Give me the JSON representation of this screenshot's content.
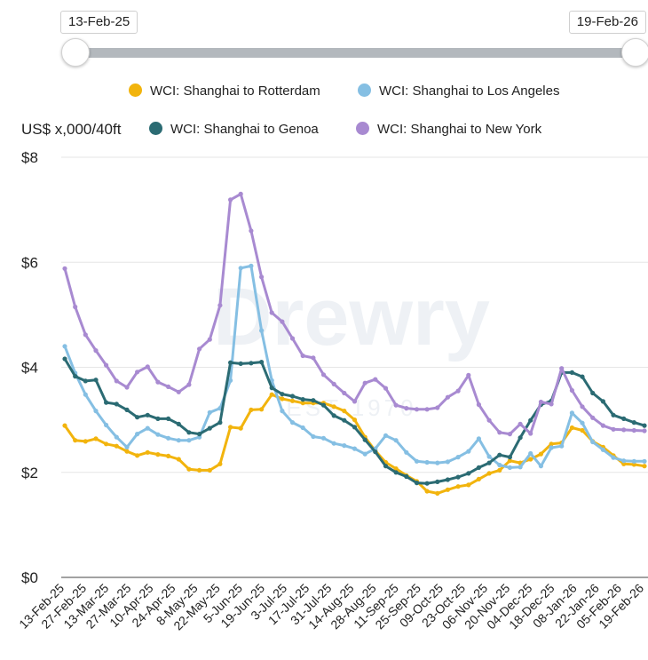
{
  "slider": {
    "start_label": "13-Feb-25",
    "end_label": "19-Feb-26"
  },
  "y_unit_label": "US$ x,000/40ft",
  "watermark": "Drewry EST 1970",
  "chart_data": {
    "type": "line",
    "ylabel": "US$ x,000/40ft",
    "ylim": [
      0,
      8
    ],
    "y_ticks": [
      0,
      2,
      4,
      6,
      8
    ],
    "y_tick_labels": [
      "$0",
      "$2",
      "$4",
      "$6",
      "$8"
    ],
    "grid": true,
    "legend_position": "top",
    "x_tick_labels": [
      "13-Feb-25",
      "27-Feb-25",
      "13-Mar-25",
      "27-Mar-25",
      "10-Apr-25",
      "24-Apr-25",
      "8-May-25",
      "22-May-25",
      "5-Jun-25",
      "19-Jun-25",
      "3-Jul-25",
      "17-Jul-25",
      "31-Jul-25",
      "14-Aug-25",
      "28-Aug-25",
      "11-Sep-25",
      "25-Sep-25",
      "09-Oct-25",
      "23-Oct-25",
      "06-Nov-25",
      "20-Nov-25",
      "04-Dec-25",
      "18-Dec-25",
      "08-Jan-26",
      "22-Jan-26",
      "05-Feb-26",
      "19-Feb-26"
    ],
    "series": [
      {
        "name": "WCI: Shanghai to Rotterdam",
        "color": "#f2b40d",
        "values": [
          2.89,
          2.61,
          2.59,
          2.64,
          2.54,
          2.5,
          2.4,
          2.32,
          2.38,
          2.34,
          2.31,
          2.25,
          2.06,
          2.04,
          2.04,
          2.16,
          2.86,
          2.84,
          3.19,
          3.2,
          3.48,
          3.4,
          3.36,
          3.32,
          3.32,
          3.32,
          3.25,
          3.17,
          3.0,
          2.67,
          2.41,
          2.19,
          2.07,
          1.94,
          1.83,
          1.64,
          1.6,
          1.67,
          1.73,
          1.76,
          1.87,
          1.98,
          2.04,
          2.22,
          2.18,
          2.25,
          2.35,
          2.54,
          2.56,
          2.85,
          2.8,
          2.59,
          2.48,
          2.32,
          2.16,
          2.15,
          2.12
        ]
      },
      {
        "name": "WCI: Shanghai to Los Angeles",
        "color": "#85bfe3",
        "values": [
          4.4,
          3.89,
          3.48,
          3.17,
          2.9,
          2.67,
          2.48,
          2.73,
          2.84,
          2.72,
          2.65,
          2.61,
          2.61,
          2.67,
          3.14,
          3.22,
          3.75,
          5.89,
          5.93,
          4.7,
          3.75,
          3.17,
          2.95,
          2.85,
          2.68,
          2.65,
          2.55,
          2.51,
          2.45,
          2.35,
          2.45,
          2.7,
          2.61,
          2.38,
          2.21,
          2.19,
          2.18,
          2.2,
          2.29,
          2.4,
          2.64,
          2.3,
          2.14,
          2.09,
          2.1,
          2.36,
          2.12,
          2.47,
          2.5,
          3.13,
          2.94,
          2.58,
          2.43,
          2.28,
          2.22,
          2.21,
          2.21
        ]
      },
      {
        "name": "WCI: Shanghai to Genoa",
        "color": "#2b6b73",
        "values": [
          4.16,
          3.83,
          3.74,
          3.76,
          3.33,
          3.3,
          3.19,
          3.05,
          3.09,
          3.02,
          3.02,
          2.92,
          2.76,
          2.73,
          2.84,
          2.95,
          4.09,
          4.07,
          4.08,
          4.1,
          3.61,
          3.49,
          3.45,
          3.39,
          3.37,
          3.28,
          3.08,
          2.99,
          2.86,
          2.62,
          2.39,
          2.12,
          2.0,
          1.92,
          1.8,
          1.79,
          1.82,
          1.86,
          1.91,
          1.98,
          2.09,
          2.18,
          2.33,
          2.29,
          2.66,
          2.99,
          3.29,
          3.36,
          3.9,
          3.9,
          3.82,
          3.51,
          3.35,
          3.09,
          3.02,
          2.95,
          2.89
        ]
      },
      {
        "name": "WCI: Shanghai to New York",
        "color": "#a88ad1",
        "values": [
          5.88,
          5.15,
          4.62,
          4.32,
          4.04,
          3.74,
          3.62,
          3.91,
          4.01,
          3.72,
          3.63,
          3.53,
          3.67,
          4.35,
          4.53,
          5.18,
          7.19,
          7.3,
          6.6,
          5.72,
          5.04,
          4.87,
          4.55,
          4.22,
          4.18,
          3.86,
          3.68,
          3.51,
          3.35,
          3.7,
          3.77,
          3.6,
          3.28,
          3.22,
          3.2,
          3.2,
          3.23,
          3.43,
          3.55,
          3.85,
          3.29,
          2.99,
          2.76,
          2.73,
          2.92,
          2.74,
          3.34,
          3.3,
          3.98,
          3.56,
          3.25,
          3.04,
          2.89,
          2.82,
          2.81,
          2.8,
          2.79
        ]
      }
    ]
  }
}
